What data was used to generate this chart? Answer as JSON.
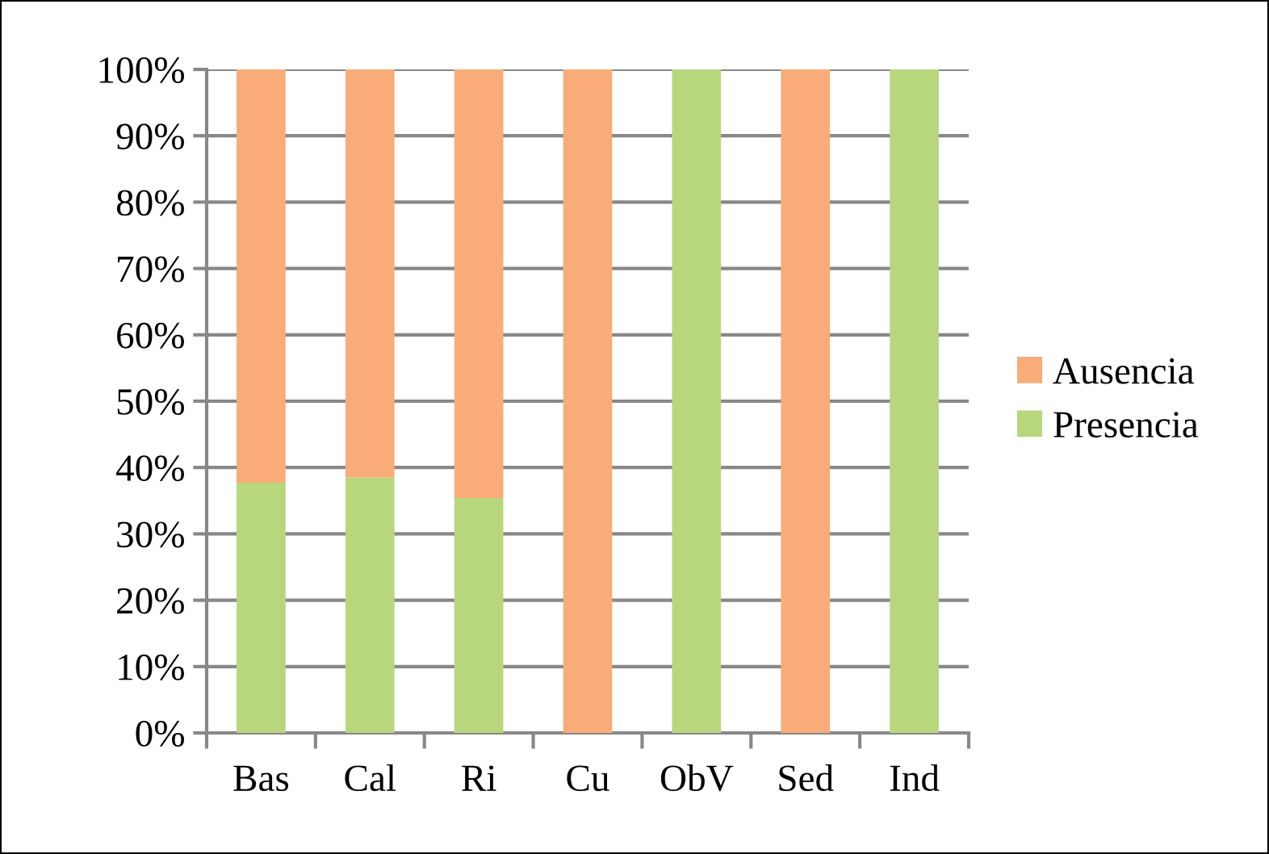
{
  "chart_data": {
    "type": "bar",
    "stacked": true,
    "categories": [
      "Bas",
      "Cal",
      "Ri",
      "Cu",
      "ObV",
      "Sed",
      "Ind"
    ],
    "series": [
      {
        "name": "Presencia",
        "color": "#b8d67c",
        "values": [
          37.7,
          38.5,
          35.4,
          0,
          100,
          0,
          100
        ]
      },
      {
        "name": "Ausencia",
        "color": "#f9ac78",
        "values": [
          62.3,
          61.5,
          64.6,
          100,
          0,
          100,
          0
        ]
      }
    ],
    "ylim": [
      0,
      100
    ],
    "yticks": [
      {
        "value": 0,
        "label": "0%"
      },
      {
        "value": 10,
        "label": "10%"
      },
      {
        "value": 20,
        "label": "20%"
      },
      {
        "value": 30,
        "label": "30%"
      },
      {
        "value": 40,
        "label": "40%"
      },
      {
        "value": 50,
        "label": "50%"
      },
      {
        "value": 60,
        "label": "60%"
      },
      {
        "value": 70,
        "label": "70%"
      },
      {
        "value": 80,
        "label": "80%"
      },
      {
        "value": 90,
        "label": "90%"
      },
      {
        "value": 100,
        "label": "100%"
      }
    ],
    "grid": "y",
    "legend": "right"
  }
}
